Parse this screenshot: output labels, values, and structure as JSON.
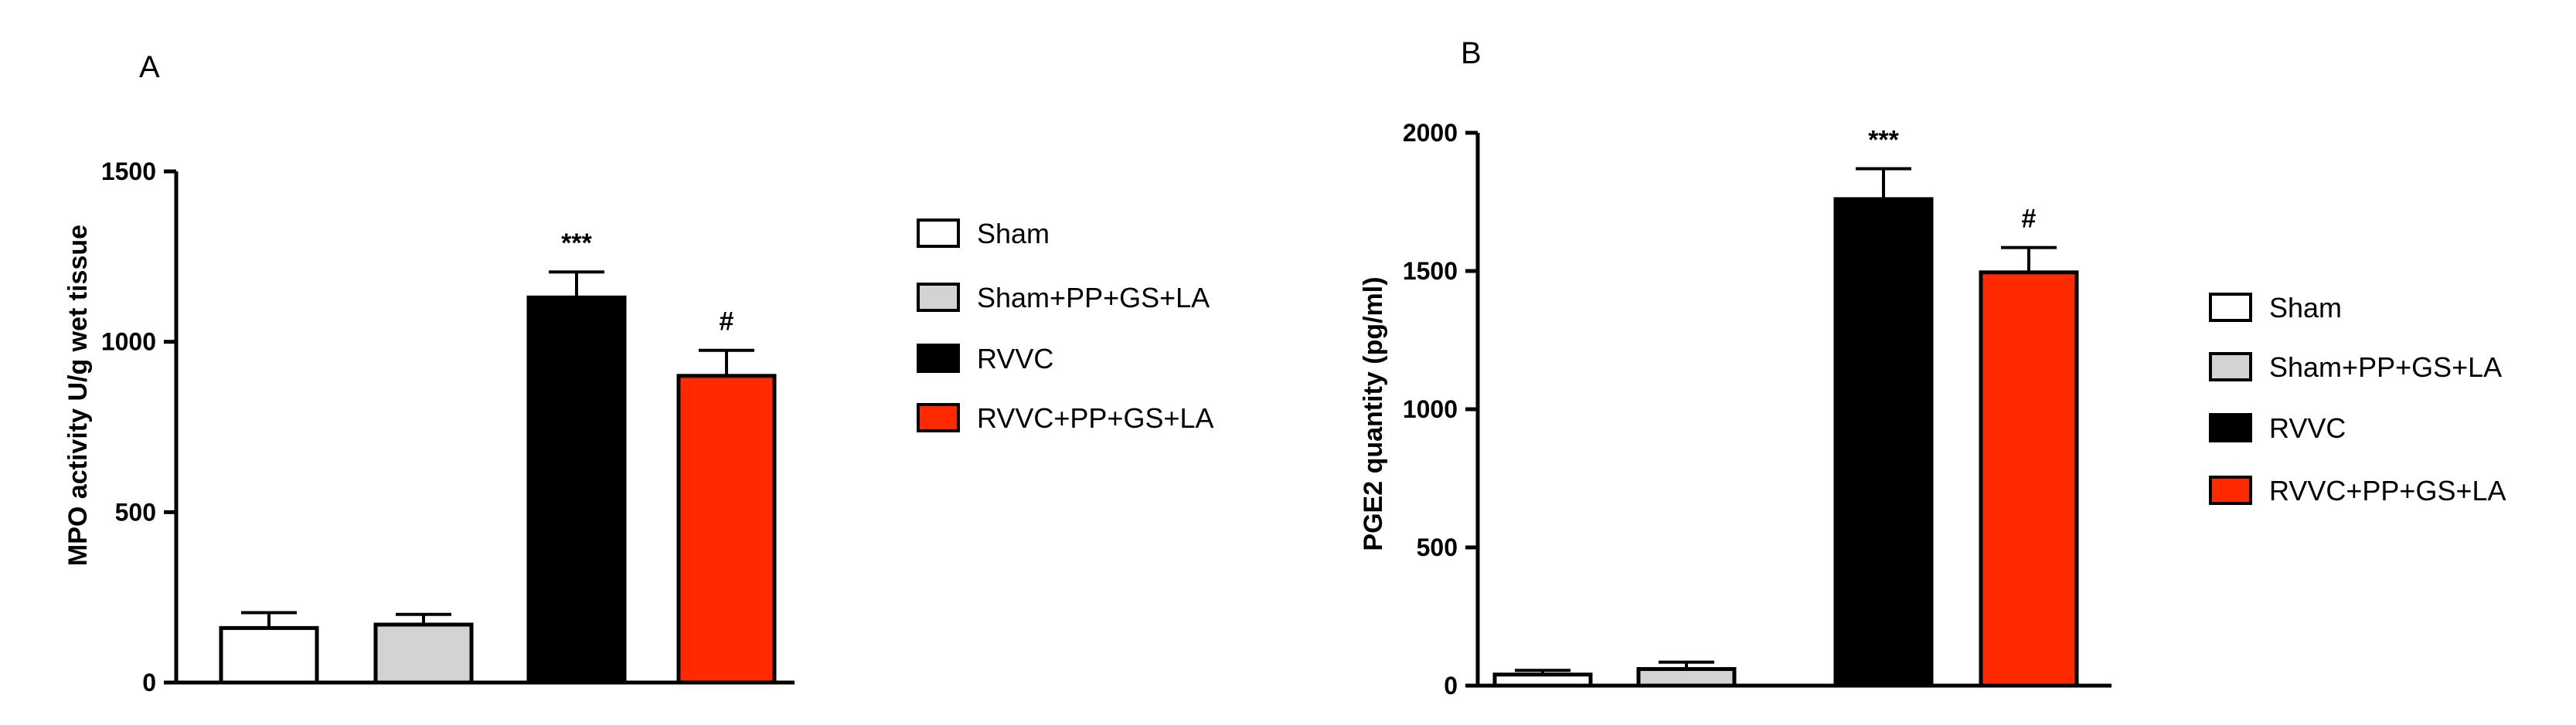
{
  "colors": [
    "#ffffff",
    "#d3d3d3",
    "#000000",
    "#ff2a00"
  ],
  "chart_data": [
    {
      "type": "bar",
      "panel": "A",
      "ylabel": "MPO activity U/g wet tissue",
      "ylim": [
        0,
        1500
      ],
      "yticks": [
        0,
        500,
        1000,
        1500
      ],
      "categories": [
        "Sham",
        "Sham+PP+GS+LA",
        "RVVC",
        "RVVC+PP+GS+LA"
      ],
      "values": [
        160,
        170,
        1130,
        900
      ],
      "errors": [
        45,
        30,
        75,
        75
      ],
      "significance": [
        "",
        "",
        "***",
        "#"
      ],
      "legend": [
        "Sham",
        "Sham+PP+GS+LA",
        "RVVC",
        "RVVC+PP+GS+LA"
      ],
      "legend_position": "right"
    },
    {
      "type": "bar",
      "panel": "B",
      "ylabel": "PGE2 quantity (pg/ml)",
      "ylim": [
        0,
        2000
      ],
      "yticks": [
        0,
        500,
        1000,
        1500,
        2000
      ],
      "categories": [
        "Sham",
        "Sham+PP+GS+LA",
        "RVVC",
        "RVVC+PP+GS+LA"
      ],
      "values": [
        40,
        60,
        1760,
        1495
      ],
      "errors": [
        15,
        25,
        110,
        90
      ],
      "significance": [
        "",
        "",
        "***",
        "#"
      ],
      "legend": [
        "Sham",
        "Sham+PP+GS+LA",
        "RVVC",
        "RVVC+PP+GS+LA"
      ],
      "legend_position": "right"
    }
  ]
}
